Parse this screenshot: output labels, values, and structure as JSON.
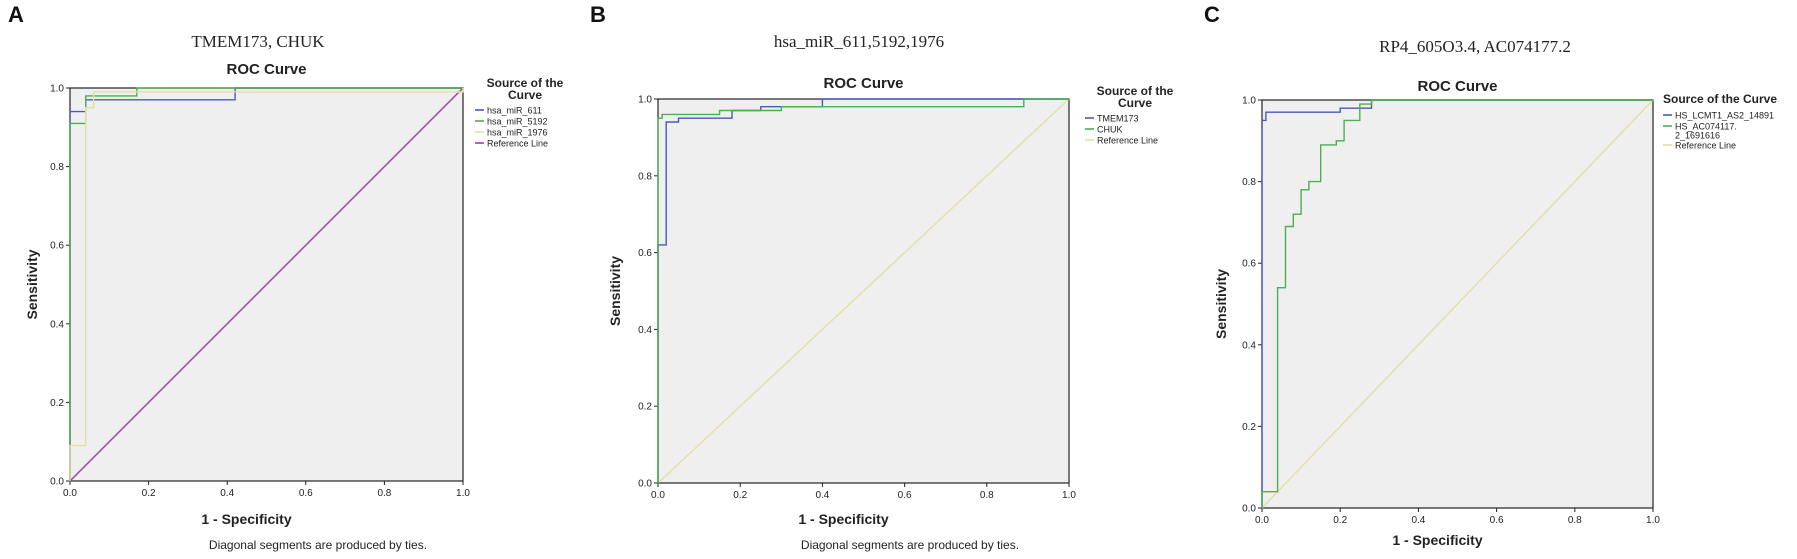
{
  "chart_data": [
    {
      "type": "line",
      "panel_label": "A",
      "suptitle": "TMEM173, CHUK",
      "title": "ROC Curve",
      "xlabel": "1 - Specificity",
      "ylabel": "Sensitivity",
      "xlim": [
        0,
        1
      ],
      "ylim": [
        0,
        1
      ],
      "xticks": [
        "0.0",
        "0.2",
        "0.4",
        "0.6",
        "0.8",
        "1.0"
      ],
      "yticks": [
        "0.0",
        "0.2",
        "0.4",
        "0.6",
        "0.8",
        "1.0"
      ],
      "legend_title": "Source of the Curve",
      "legend_placement": "right",
      "footnote": "Diagonal segments are produced by ties.",
      "grid": false,
      "series": [
        {
          "name": "hsa_miR_611",
          "color": "#4a5ab8",
          "points": [
            [
              0,
              0
            ],
            [
              0,
              0.94
            ],
            [
              0.04,
              0.94
            ],
            [
              0.04,
              0.97
            ],
            [
              0.42,
              0.97
            ],
            [
              0.42,
              1
            ],
            [
              1,
              1
            ]
          ]
        },
        {
          "name": "hsa_miR_5192",
          "color": "#4caf50",
          "points": [
            [
              0,
              0
            ],
            [
              0,
              0.91
            ],
            [
              0.04,
              0.91
            ],
            [
              0.04,
              0.98
            ],
            [
              0.17,
              0.98
            ],
            [
              0.17,
              1
            ],
            [
              1,
              1
            ]
          ]
        },
        {
          "name": "hsa_miR_1976",
          "color": "#e3e0a4",
          "points": [
            [
              0,
              0
            ],
            [
              0,
              0.09
            ],
            [
              0.04,
              0.09
            ],
            [
              0.04,
              0.95
            ],
            [
              0.06,
              0.95
            ],
            [
              0.06,
              0.99
            ],
            [
              1,
              0.99
            ],
            [
              1,
              1
            ]
          ]
        },
        {
          "name": "Reference Line",
          "color": "#9b3fa3",
          "points": [
            [
              0,
              0
            ],
            [
              1,
              1
            ]
          ]
        }
      ]
    },
    {
      "type": "line",
      "panel_label": "B",
      "suptitle": "hsa_miR_611,5192,1976",
      "title": "ROC Curve",
      "xlabel": "1 - Specificity",
      "ylabel": "Sensitivity",
      "xlim": [
        0,
        1
      ],
      "ylim": [
        0,
        1
      ],
      "xticks": [
        "0.0",
        "0.2",
        "0.4",
        "0.6",
        "0.8",
        "1.0"
      ],
      "yticks": [
        "0.0",
        "0.2",
        "0.4",
        "0.6",
        "0.8",
        "1.0"
      ],
      "legend_title": "Source of the Curve",
      "legend_placement": "right",
      "footnote": "Diagonal segments are produced by ties.",
      "grid": false,
      "series": [
        {
          "name": "TMEM173",
          "color": "#4a5ab8",
          "points": [
            [
              0,
              0
            ],
            [
              0,
              0.62
            ],
            [
              0.02,
              0.62
            ],
            [
              0.02,
              0.94
            ],
            [
              0.05,
              0.94
            ],
            [
              0.05,
              0.95
            ],
            [
              0.18,
              0.95
            ],
            [
              0.18,
              0.97
            ],
            [
              0.25,
              0.97
            ],
            [
              0.25,
              0.98
            ],
            [
              0.4,
              0.98
            ],
            [
              0.4,
              1
            ],
            [
              1,
              1
            ]
          ]
        },
        {
          "name": "CHUK",
          "color": "#4caf50",
          "points": [
            [
              0,
              0
            ],
            [
              0,
              0.95
            ],
            [
              0.01,
              0.95
            ],
            [
              0.01,
              0.96
            ],
            [
              0.15,
              0.96
            ],
            [
              0.15,
              0.97
            ],
            [
              0.3,
              0.97
            ],
            [
              0.3,
              0.98
            ],
            [
              0.89,
              0.98
            ],
            [
              0.89,
              1
            ],
            [
              1,
              1
            ]
          ]
        },
        {
          "name": "Reference Line",
          "color": "#e3e0a4",
          "points": [
            [
              0,
              0
            ],
            [
              1,
              1
            ]
          ]
        }
      ]
    },
    {
      "type": "line",
      "panel_label": "C",
      "suptitle": "RP4_605O3.4, AC074177.2",
      "title": "ROC Curve",
      "xlabel": "1 - Specificity",
      "ylabel": "Sensitivity",
      "xlim": [
        0,
        1
      ],
      "ylim": [
        0,
        1
      ],
      "xticks": [
        "0.0",
        "0.2",
        "0.4",
        "0.6",
        "0.8",
        "1.0"
      ],
      "yticks": [
        "0.0",
        "0.2",
        "0.4",
        "0.6",
        "0.8",
        "1.0"
      ],
      "legend_title": "Source of the Curve",
      "legend_placement": "right",
      "grid": false,
      "series": [
        {
          "name": "HS_LCMT1_AS2_14891",
          "color": "#4a5ab8",
          "points": [
            [
              0,
              0
            ],
            [
              0,
              0.95
            ],
            [
              0.01,
              0.95
            ],
            [
              0.01,
              0.97
            ],
            [
              0.2,
              0.97
            ],
            [
              0.2,
              0.98
            ],
            [
              0.28,
              0.98
            ],
            [
              0.28,
              1
            ],
            [
              1,
              1
            ]
          ]
        },
        {
          "name": "HS_AC074117.2_1691616",
          "legend_lines": [
            "HS_AC074117.",
            "2_1691616"
          ],
          "color": "#4caf50",
          "points": [
            [
              0,
              0
            ],
            [
              0,
              0.04
            ],
            [
              0.04,
              0.04
            ],
            [
              0.04,
              0.54
            ],
            [
              0.06,
              0.54
            ],
            [
              0.06,
              0.69
            ],
            [
              0.08,
              0.69
            ],
            [
              0.08,
              0.72
            ],
            [
              0.1,
              0.72
            ],
            [
              0.1,
              0.78
            ],
            [
              0.12,
              0.78
            ],
            [
              0.12,
              0.8
            ],
            [
              0.15,
              0.8
            ],
            [
              0.15,
              0.89
            ],
            [
              0.19,
              0.89
            ],
            [
              0.19,
              0.9
            ],
            [
              0.21,
              0.9
            ],
            [
              0.21,
              0.95
            ],
            [
              0.25,
              0.95
            ],
            [
              0.25,
              0.99
            ],
            [
              0.28,
              0.99
            ],
            [
              0.28,
              1
            ],
            [
              1,
              1
            ]
          ]
        },
        {
          "name": "Reference Line",
          "color": "#e3e0a4",
          "points": [
            [
              0,
              0
            ],
            [
              1,
              1
            ]
          ]
        }
      ]
    }
  ]
}
